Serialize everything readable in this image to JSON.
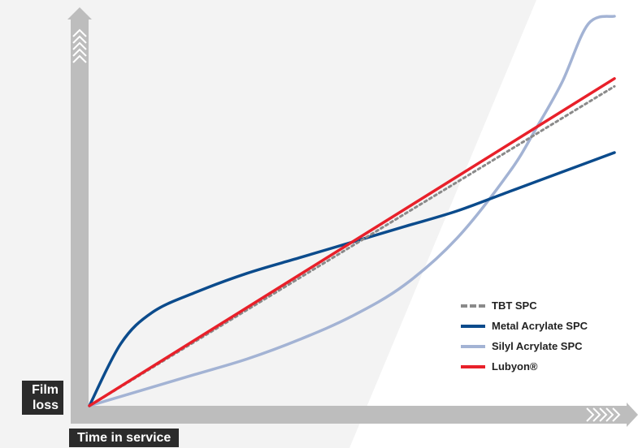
{
  "chart_data": {
    "type": "line",
    "title": "",
    "xlabel": "Time in service",
    "ylabel": "Film loss",
    "xlim": [
      0,
      1
    ],
    "ylim": [
      0,
      1
    ],
    "grid": false,
    "legend_position": "bottom-right",
    "series": [
      {
        "name": "TBT SPC",
        "color": "#8a8a8a",
        "style": "dotted",
        "x": [
          0,
          1
        ],
        "y": [
          0,
          0.82
        ]
      },
      {
        "name": "Metal Acrylate SPC",
        "color": "#0b4b8c",
        "style": "solid",
        "x": [
          0,
          0.06,
          0.12,
          0.2,
          0.3,
          0.4,
          0.5,
          0.6,
          0.7,
          0.8,
          0.9,
          1.0
        ],
        "y": [
          0,
          0.16,
          0.24,
          0.29,
          0.34,
          0.38,
          0.42,
          0.46,
          0.5,
          0.55,
          0.6,
          0.65
        ]
      },
      {
        "name": "Silyl Acrylate SPC",
        "color": "#a3b3d4",
        "style": "solid",
        "x": [
          0,
          0.1,
          0.2,
          0.3,
          0.4,
          0.5,
          0.6,
          0.7,
          0.8,
          0.85,
          0.9,
          0.95,
          1.0
        ],
        "y": [
          0,
          0.04,
          0.08,
          0.12,
          0.17,
          0.23,
          0.31,
          0.43,
          0.6,
          0.71,
          0.83,
          0.98,
          1.0
        ]
      },
      {
        "name": "Lubyon®",
        "color": "#e8202a",
        "style": "solid",
        "x": [
          0,
          1
        ],
        "y": [
          0,
          0.84
        ]
      }
    ]
  }
}
